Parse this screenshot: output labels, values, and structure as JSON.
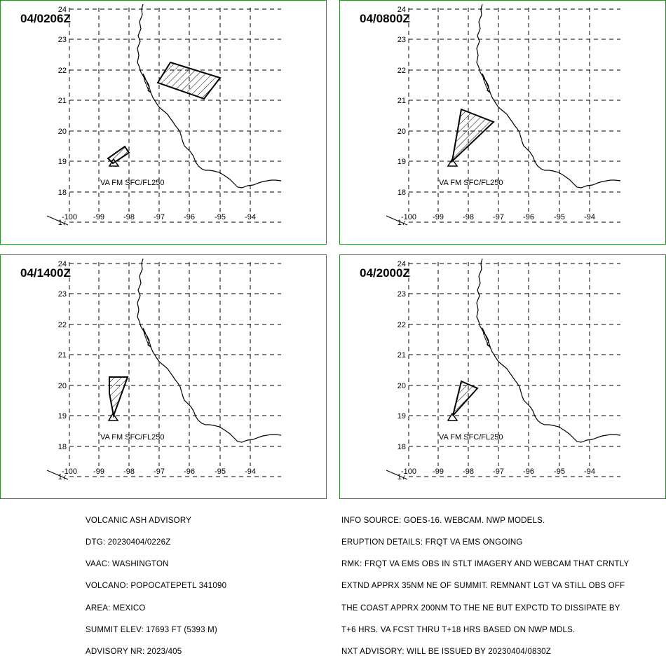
{
  "panels": [
    {
      "id": "p1",
      "dtg": "04/0206Z",
      "label": "VA FM SFC/FL250"
    },
    {
      "id": "p2",
      "dtg": "04/0800Z",
      "label": "VA FM SFC/FL250"
    },
    {
      "id": "p3",
      "dtg": "04/1400Z",
      "label": "VA FM SFC/FL250"
    },
    {
      "id": "p4",
      "dtg": "04/2000Z",
      "label": "VA FM SFC/FL250"
    }
  ],
  "map": {
    "lat_labels": [
      "24",
      "23",
      "22",
      "21",
      "20",
      "19",
      "18",
      "17"
    ],
    "lon_labels": [
      "-100",
      "-99",
      "-98",
      "-97",
      "-96",
      "-95",
      "-94"
    ],
    "line_color": "#000000",
    "border_color": "#2e8b2e"
  },
  "advisory_left": [
    "VOLCANIC ASH ADVISORY",
    "DTG: 20230404/0226Z",
    "VAAC: WASHINGTON",
    "VOLCANO: POPOCATEPETL 341090",
    "AREA: MEXICO",
    "SUMMIT ELEV: 17693 FT (5393 M)",
    "ADVISORY NR: 2023/405"
  ],
  "advisory_right": [
    "INFO SOURCE: GOES-16. WEBCAM. NWP MODELS.",
    "ERUPTION DETAILS: FRQT VA EMS ONGOING",
    "RMK: FRQT VA EMS OBS IN STLT IMAGERY AND WEBCAM THAT CRNTLY",
    "EXTND APPRX 35NM NE OF SUMMIT. REMNANT LGT VA STILL OBS OFF",
    "THE COAST APPRX 200NM TO THE NE BUT EXPCTD TO DISSIPATE BY",
    "T+6 HRS. VA FCST THRU T+18 HRS BASED ON NWP MDLS.",
    "NXT ADVISORY: WILL BE ISSUED BY 20230404/0830Z"
  ]
}
